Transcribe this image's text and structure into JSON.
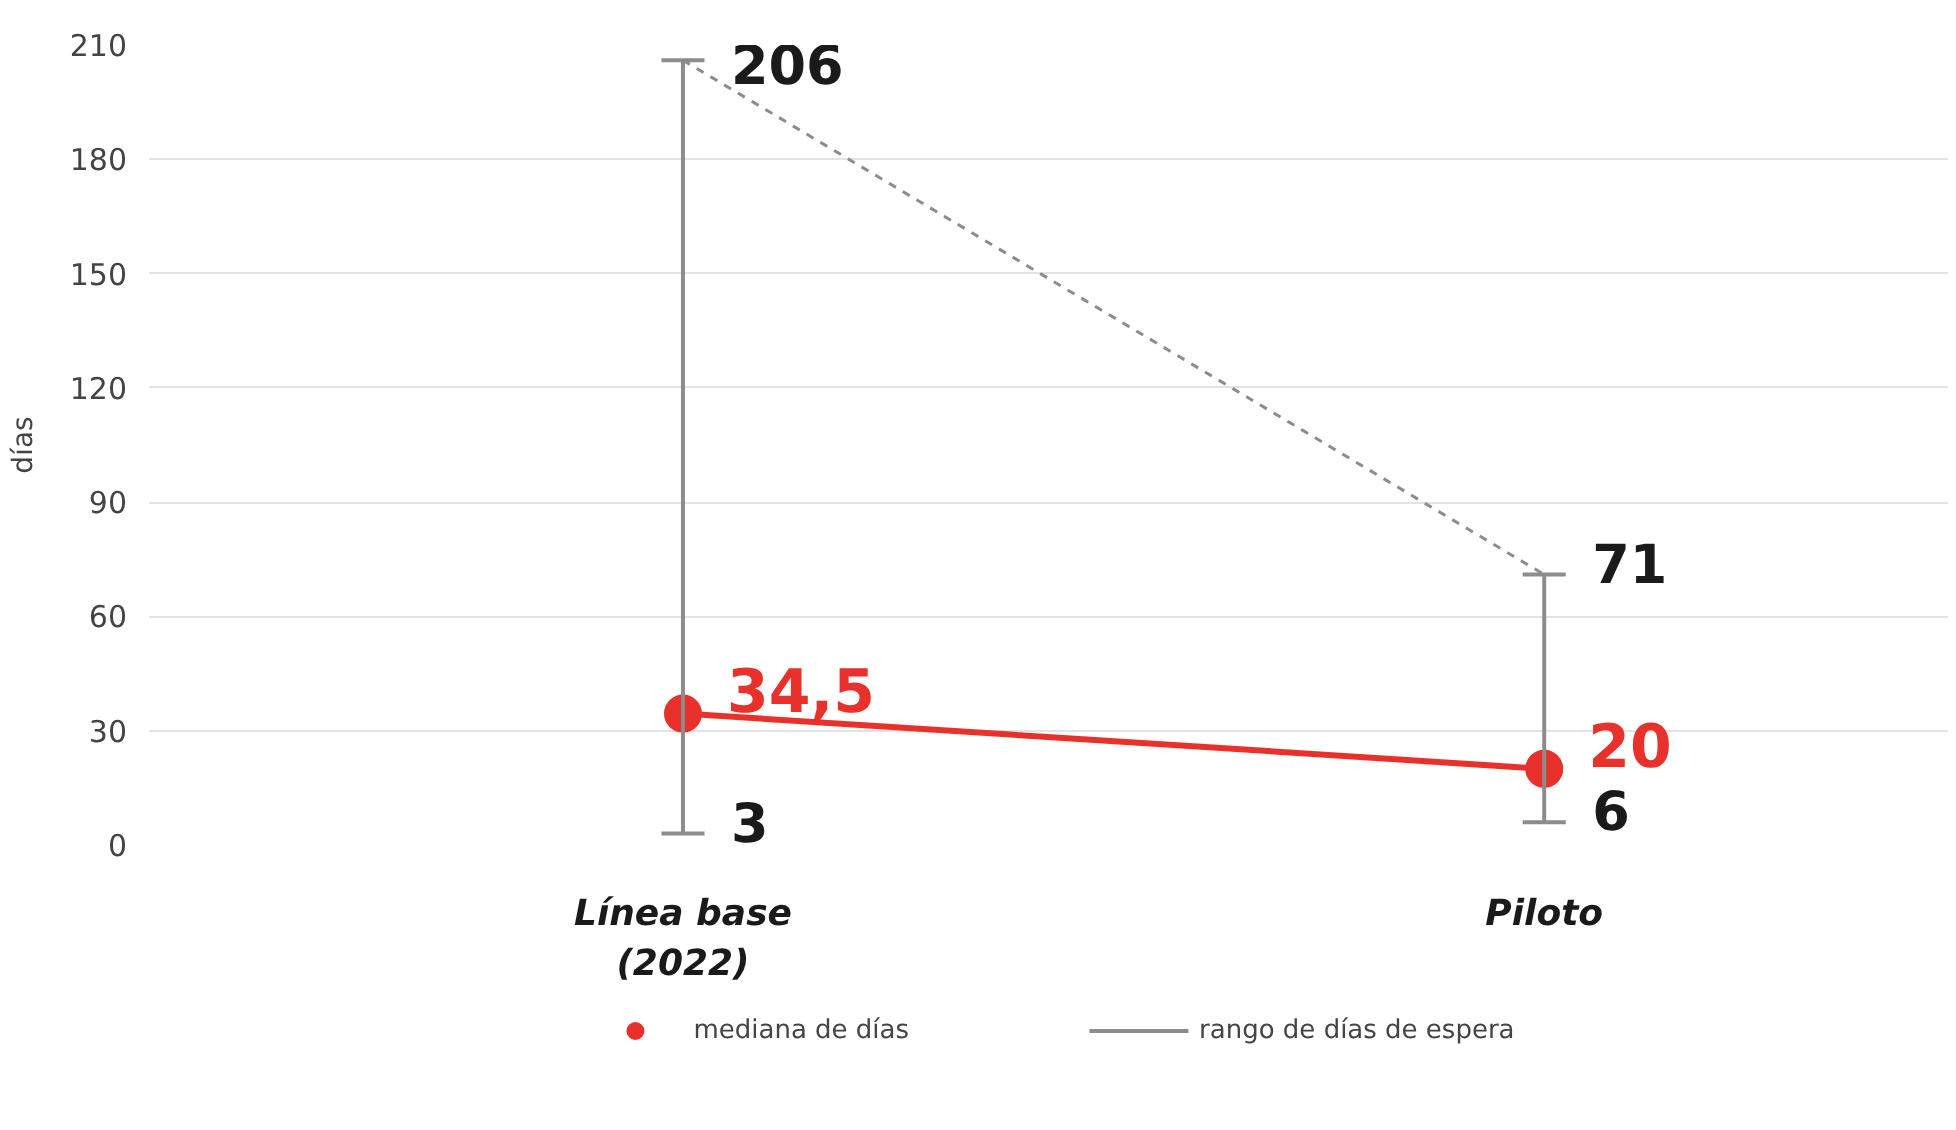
{
  "chart_data": {
    "type": "line",
    "categories": [
      "Línea base\n(2022)",
      "Piloto"
    ],
    "ylabel": "días",
    "ylim": [
      0,
      210
    ],
    "yticks": [
      0,
      30,
      60,
      90,
      120,
      150,
      180,
      210
    ],
    "grid": "y",
    "legend": "bottom",
    "series": [
      {
        "name": "mediana de días",
        "color": "#e8312a",
        "marker": "circle",
        "line_style": "solid",
        "values": [
          34.5,
          20
        ],
        "value_labels": [
          "34,5",
          "20"
        ]
      },
      {
        "name": "rango de días de espera",
        "color": "#8c8c8c",
        "marker": "none",
        "line_style": "dashed",
        "values": [
          206,
          71
        ],
        "errors": [
          [
            3,
            206
          ],
          [
            6,
            71
          ]
        ]
      }
    ],
    "annotations": [
      {
        "text": "206",
        "x": "Línea base\n(2022)",
        "y": 206
      },
      {
        "text": "71",
        "x": "Piloto",
        "y": 71
      },
      {
        "text": "3",
        "x": "Línea base\n(2022)",
        "y": 3
      },
      {
        "text": "6",
        "x": "Piloto",
        "y": 6
      }
    ]
  }
}
